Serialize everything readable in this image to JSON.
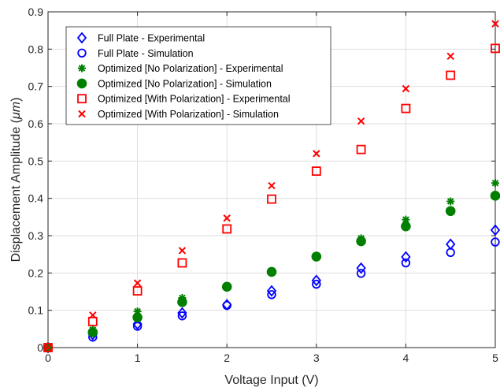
{
  "chart_data": {
    "type": "scatter",
    "xlabel": "Voltage Input (V)",
    "ylabel_main": "Displacement Amplitude (",
    "ylabel_unit": "μm",
    "ylabel_close": ")",
    "xlim": [
      0,
      5
    ],
    "ylim": [
      0,
      0.9
    ],
    "xticks": [
      "0",
      "1",
      "2",
      "3",
      "4",
      "5"
    ],
    "yticks": [
      "0",
      "0.1",
      "0.2",
      "0.3",
      "0.4",
      "0.5",
      "0.6",
      "0.7",
      "0.8",
      "0.9"
    ],
    "grid": true,
    "legend_position": "top-left",
    "x": [
      0,
      0.5,
      1,
      1.5,
      2,
      2.5,
      3,
      3.5,
      4,
      4.5,
      5
    ],
    "series": [
      {
        "name": "Full Plate - Experimental",
        "marker": "diamond-icon",
        "color": "#0000ff",
        "values": [
          0,
          0.035,
          0.063,
          0.093,
          0.115,
          0.152,
          0.18,
          0.213,
          0.243,
          0.277,
          0.315
        ]
      },
      {
        "name": "Full Plate - Simulation",
        "marker": "circle-icon",
        "color": "#0000ff",
        "values": [
          0,
          0.028,
          0.057,
          0.085,
          0.113,
          0.142,
          0.17,
          0.199,
          0.227,
          0.255,
          0.283
        ]
      },
      {
        "name": "Optimized  [No Polarization] - Experimental",
        "marker": "asterisk-icon",
        "color": "#007f00",
        "values": [
          0,
          0.048,
          0.097,
          0.133,
          0.165,
          0.204,
          0.245,
          0.293,
          0.343,
          0.392,
          0.441
        ]
      },
      {
        "name": "Optimized  [No Polarization] - Simulation",
        "marker": "filled-circle-icon",
        "color": "#007f00",
        "values": [
          0,
          0.041,
          0.081,
          0.122,
          0.163,
          0.203,
          0.244,
          0.285,
          0.325,
          0.366,
          0.407
        ]
      },
      {
        "name": "Optimized  [With Polarization] - Experimental",
        "marker": "square-icon",
        "color": "#ff0000",
        "values": [
          0,
          0.07,
          0.152,
          0.227,
          0.318,
          0.398,
          0.473,
          0.531,
          0.641,
          0.73,
          0.802
        ]
      },
      {
        "name": "Optimized  [With Polarization] - Simulation",
        "marker": "x-icon",
        "color": "#ff0000",
        "values": [
          0,
          0.087,
          0.173,
          0.26,
          0.347,
          0.434,
          0.52,
          0.607,
          0.694,
          0.781,
          0.868
        ]
      }
    ]
  }
}
